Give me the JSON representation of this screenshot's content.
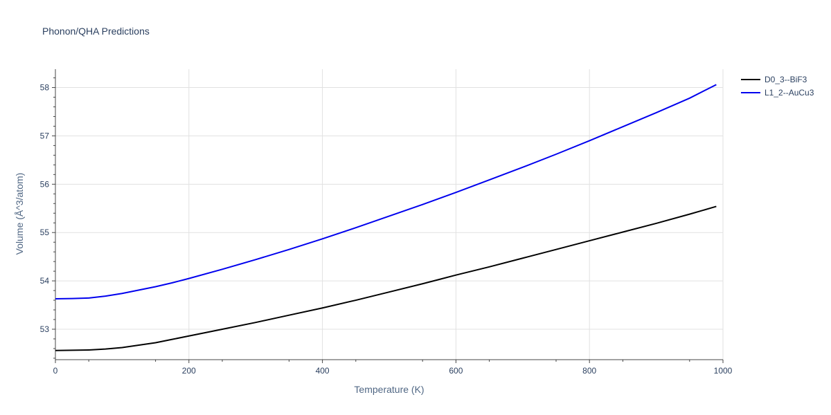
{
  "chart_data": {
    "type": "line",
    "title": "Phonon/QHA Predictions",
    "xlabel": "Temperature (K)",
    "ylabel": "Volume (Å^3/atom)",
    "xlim": [
      0,
      1000
    ],
    "ylim": [
      52.37,
      58.38
    ],
    "xticks": [
      0,
      200,
      400,
      600,
      800,
      1000
    ],
    "xtick_labels": [
      "0",
      "200",
      "400",
      "600",
      "800",
      "1000"
    ],
    "yticks": [
      53,
      54,
      55,
      56,
      57,
      58
    ],
    "ytick_labels": [
      "53",
      "54",
      "55",
      "56",
      "57",
      "58"
    ],
    "grid": true,
    "legend_position": "top-right",
    "series": [
      {
        "name": "D0_3--BiF3",
        "color": "#000000",
        "x": [
          0,
          25,
          50,
          75,
          100,
          125,
          150,
          175,
          200,
          250,
          300,
          350,
          400,
          450,
          500,
          550,
          600,
          650,
          700,
          750,
          800,
          850,
          900,
          950,
          990
        ],
        "y": [
          52.56,
          52.565,
          52.57,
          52.59,
          52.62,
          52.67,
          52.72,
          52.79,
          52.86,
          53.0,
          53.14,
          53.29,
          53.44,
          53.6,
          53.77,
          53.94,
          54.12,
          54.29,
          54.47,
          54.65,
          54.83,
          55.01,
          55.19,
          55.38,
          55.54
        ]
      },
      {
        "name": "L1_2--AuCu3",
        "color": "#0000ee",
        "x": [
          0,
          25,
          50,
          75,
          100,
          125,
          150,
          175,
          200,
          250,
          300,
          350,
          400,
          450,
          500,
          550,
          600,
          650,
          700,
          750,
          800,
          850,
          900,
          950,
          990
        ],
        "y": [
          53.63,
          53.635,
          53.645,
          53.685,
          53.74,
          53.81,
          53.88,
          53.96,
          54.05,
          54.24,
          54.44,
          54.65,
          54.87,
          55.1,
          55.34,
          55.58,
          55.83,
          56.09,
          56.35,
          56.62,
          56.9,
          57.19,
          57.48,
          57.78,
          58.06
        ]
      }
    ]
  }
}
